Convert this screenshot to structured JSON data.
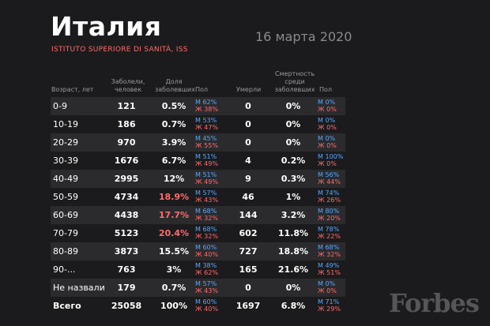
{
  "header": {
    "title": "Италия",
    "source": "ISTITUTO SUPERIORE DI SANITÀ, ISS",
    "date": "16 марта 2020"
  },
  "columns": {
    "age": "Возраст, лет",
    "sick": "Заболели, человек",
    "share": "Доля заболевших",
    "gender1": "Пол",
    "died": "Умерли",
    "rate": "Смертность среди заболевших",
    "gender2": "Пол"
  },
  "rows": [
    {
      "age": "0-9",
      "sick": "121",
      "share": "0.5%",
      "pol1_m": "М 62%",
      "pol1_f": "Ж 38%",
      "died": "0",
      "rate": "0%",
      "pol2_m": "М 0%",
      "pol2_f": "Ж 0%",
      "highlight": false
    },
    {
      "age": "10-19",
      "sick": "186",
      "share": "0.7%",
      "pol1_m": "М 53%",
      "pol1_f": "Ж 47%",
      "died": "0",
      "rate": "0%",
      "pol2_m": "М 0%",
      "pol2_f": "Ж 0%",
      "highlight": false
    },
    {
      "age": "20-29",
      "sick": "970",
      "share": "3.9%",
      "pol1_m": "М 45%",
      "pol1_f": "Ж 55%",
      "died": "0",
      "rate": "0%",
      "pol2_m": "М 0%",
      "pol2_f": "Ж 0%",
      "highlight": false
    },
    {
      "age": "30-39",
      "sick": "1676",
      "share": "6.7%",
      "pol1_m": "М 51%",
      "pol1_f": "Ж 49%",
      "died": "4",
      "rate": "0.2%",
      "pol2_m": "М 100%",
      "pol2_f": "Ж 0%",
      "highlight": false
    },
    {
      "age": "40-49",
      "sick": "2995",
      "share": "12%",
      "pol1_m": "М 51%",
      "pol1_f": "Ж 49%",
      "died": "9",
      "rate": "0.3%",
      "pol2_m": "М 56%",
      "pol2_f": "Ж 44%",
      "highlight": false
    },
    {
      "age": "50-59",
      "sick": "4734",
      "share": "18.9%",
      "pol1_m": "М 57%",
      "pol1_f": "Ж 43%",
      "died": "46",
      "rate": "1%",
      "pol2_m": "М 74%",
      "pol2_f": "Ж 26%",
      "highlight": true
    },
    {
      "age": "60-69",
      "sick": "4438",
      "share": "17.7%",
      "pol1_m": "М 68%",
      "pol1_f": "Ж 32%",
      "died": "144",
      "rate": "3.2%",
      "pol2_m": "М 80%",
      "pol2_f": "Ж 20%",
      "highlight": true
    },
    {
      "age": "70-79",
      "sick": "5123",
      "share": "20.4%",
      "pol1_m": "М 68%",
      "pol1_f": "Ж 32%",
      "died": "602",
      "rate": "11.8%",
      "pol2_m": "М 78%",
      "pol2_f": "Ж 22%",
      "highlight": true
    },
    {
      "age": "80-89",
      "sick": "3873",
      "share": "15.5%",
      "pol1_m": "М 60%",
      "pol1_f": "Ж 40%",
      "died": "727",
      "rate": "18.8%",
      "pol2_m": "М 68%",
      "pol2_f": "Ж 32%",
      "highlight": false
    },
    {
      "age": "90-...",
      "sick": "763",
      "share": "3%",
      "pol1_m": "М 38%",
      "pol1_f": "Ж 62%",
      "died": "165",
      "rate": "21.6%",
      "pol2_m": "М 49%",
      "pol2_f": "Ж 51%",
      "highlight": false
    },
    {
      "age": "Не назвали",
      "sick": "179",
      "share": "0.7%",
      "pol1_m": "М 57%",
      "pol1_f": "Ж 43%",
      "died": "0",
      "rate": "0%",
      "pol2_m": "М 0%",
      "pol2_f": "Ж 0%",
      "highlight": false
    },
    {
      "age": "Всего",
      "sick": "25058",
      "share": "100%",
      "pol1_m": "М 60%",
      "pol1_f": "Ж 40%",
      "died": "1697",
      "rate": "6.8%",
      "pol2_m": "М 71%",
      "pol2_f": "Ж 29%",
      "highlight": false,
      "total": true
    }
  ],
  "watermark": "Forbes"
}
